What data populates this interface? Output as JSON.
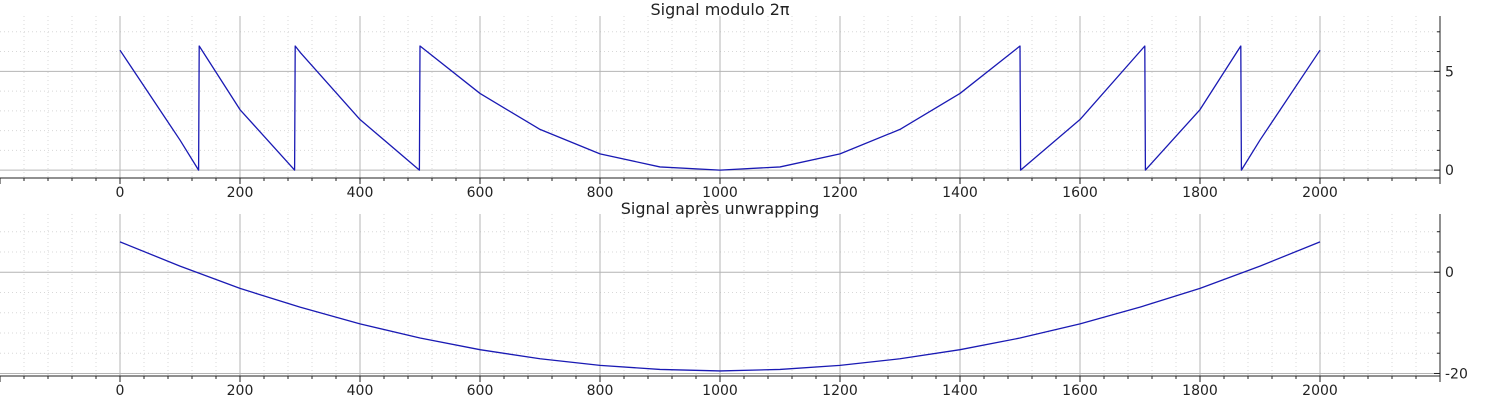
{
  "colors": {
    "background": "#ffffff",
    "major_grid": "#b4b4b4",
    "minor_grid": "#d8d8d8",
    "axis": "#222222",
    "series": "#1a1ab4"
  },
  "chart_data": [
    {
      "type": "line",
      "title": "Signal modulo 2π",
      "xlabel": "",
      "ylabel": "",
      "xlim": [
        -200,
        2200
      ],
      "ylim": [
        -0.4,
        7.8
      ],
      "x_ticks": [
        0,
        200,
        400,
        600,
        800,
        1000,
        1200,
        1400,
        1600,
        1800,
        2000
      ],
      "x_tick_labels": [
        "0",
        "200",
        "400",
        "600",
        "800",
        "1000",
        "1200",
        "1400",
        "1600",
        "1800",
        "2000"
      ],
      "y_ticks": [
        0,
        5
      ],
      "y_tick_labels": [
        "0",
        "5"
      ],
      "y_axis_side": "right",
      "grid": true,
      "minor_grid": true,
      "series": [
        {
          "values_desc": "",
          "x": [
            0,
            100,
            131,
            132,
            200,
            291,
            292,
            300,
            400,
            499,
            500,
            600,
            700,
            800,
            900,
            1000,
            1100,
            1200,
            1300,
            1400,
            1500,
            1501,
            1600,
            1708,
            1709,
            1800,
            1868,
            1869,
            1900,
            2000
          ],
          "y": [
            6.07,
            1.52,
            0.0,
            6.28,
            3.06,
            0.0,
            6.28,
            5.97,
            2.56,
            0.0,
            6.28,
            3.88,
            2.06,
            0.82,
            0.16,
            0.0,
            0.16,
            0.82,
            2.06,
            3.88,
            6.28,
            0.0,
            2.56,
            6.28,
            0.0,
            3.06,
            6.28,
            0.0,
            1.52,
            6.07
          ]
        }
      ]
    },
    {
      "type": "line",
      "title": "Signal après unwrapping",
      "xlabel": "",
      "ylabel": "",
      "xlim": [
        -200,
        2200
      ],
      "ylim": [
        -20.5,
        11.5
      ],
      "x_ticks": [
        0,
        200,
        400,
        600,
        800,
        1000,
        1200,
        1400,
        1600,
        1800,
        2000
      ],
      "x_tick_labels": [
        "0",
        "200",
        "400",
        "600",
        "800",
        "1000",
        "1200",
        "1400",
        "1600",
        "1800",
        "2000"
      ],
      "y_ticks": [
        -20,
        0
      ],
      "y_tick_labels": [
        "-20",
        "0"
      ],
      "y_axis_side": "right",
      "grid": true,
      "minor_grid": true,
      "series": [
        {
          "x": [
            0,
            100,
            200,
            300,
            400,
            500,
            600,
            700,
            800,
            900,
            1000,
            1100,
            1200,
            1300,
            1400,
            1500,
            1600,
            1700,
            1800,
            1900,
            2000
          ],
          "y": [
            6.0,
            1.2,
            -3.2,
            -6.9,
            -10.2,
            -13.0,
            -15.3,
            -17.1,
            -18.4,
            -19.2,
            -19.5,
            -19.2,
            -18.4,
            -17.1,
            -15.3,
            -13.0,
            -10.2,
            -6.9,
            -3.2,
            1.2,
            6.0
          ]
        }
      ]
    }
  ]
}
